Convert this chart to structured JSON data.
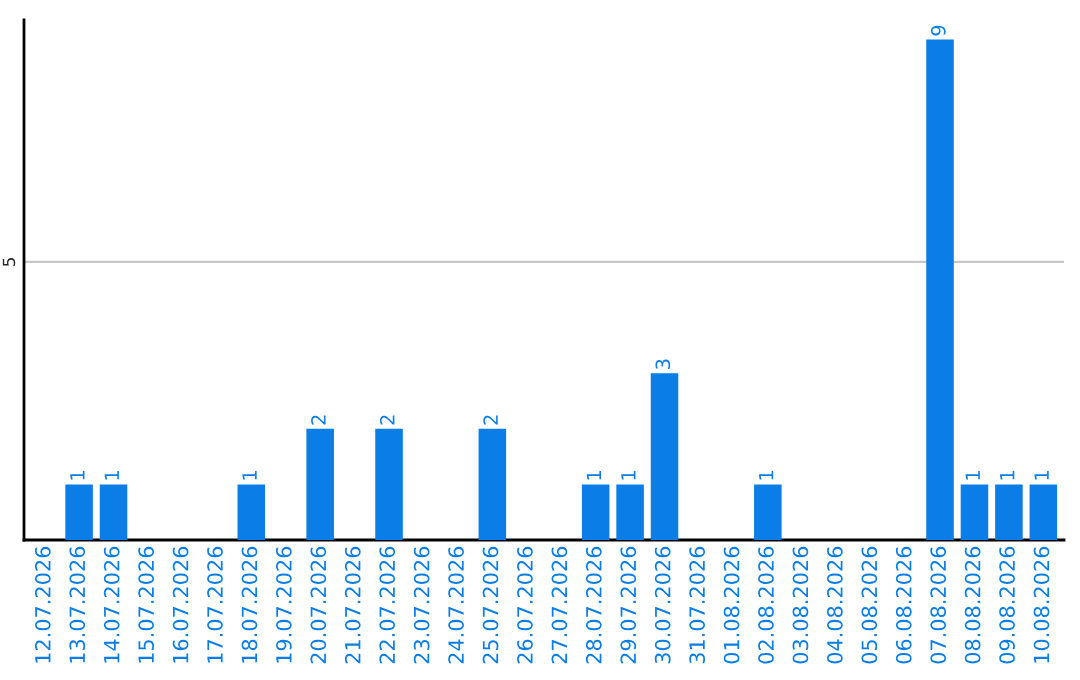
{
  "chart_data": {
    "type": "bar",
    "categories": [
      "12.07.2026",
      "13.07.2026",
      "14.07.2026",
      "15.07.2026",
      "16.07.2026",
      "17.07.2026",
      "18.07.2026",
      "19.07.2026",
      "20.07.2026",
      "21.07.2026",
      "22.07.2026",
      "23.07.2026",
      "24.07.2026",
      "25.07.2026",
      "26.07.2026",
      "27.07.2026",
      "28.07.2026",
      "29.07.2026",
      "30.07.2026",
      "31.07.2026",
      "01.08.2026",
      "02.08.2026",
      "03.08.2026",
      "04.08.2026",
      "05.08.2026",
      "06.08.2026",
      "07.08.2026",
      "08.08.2026",
      "09.08.2026",
      "10.08.2026"
    ],
    "values": [
      0,
      1,
      1,
      0,
      0,
      0,
      1,
      0,
      2,
      0,
      2,
      0,
      0,
      2,
      0,
      0,
      1,
      1,
      3,
      0,
      0,
      1,
      0,
      0,
      0,
      0,
      9,
      1,
      1,
      1
    ],
    "value_labels": [
      null,
      "1",
      "1",
      null,
      null,
      null,
      "1",
      null,
      "2",
      null,
      "2",
      null,
      null,
      "2",
      null,
      null,
      "1",
      "1",
      "3",
      null,
      null,
      "1",
      null,
      null,
      null,
      null,
      "9",
      "1",
      "1",
      "1"
    ],
    "color": "#0a7de6",
    "ylim": [
      0,
      9.35
    ],
    "yticks": [
      5
    ],
    "grid": "y"
  }
}
